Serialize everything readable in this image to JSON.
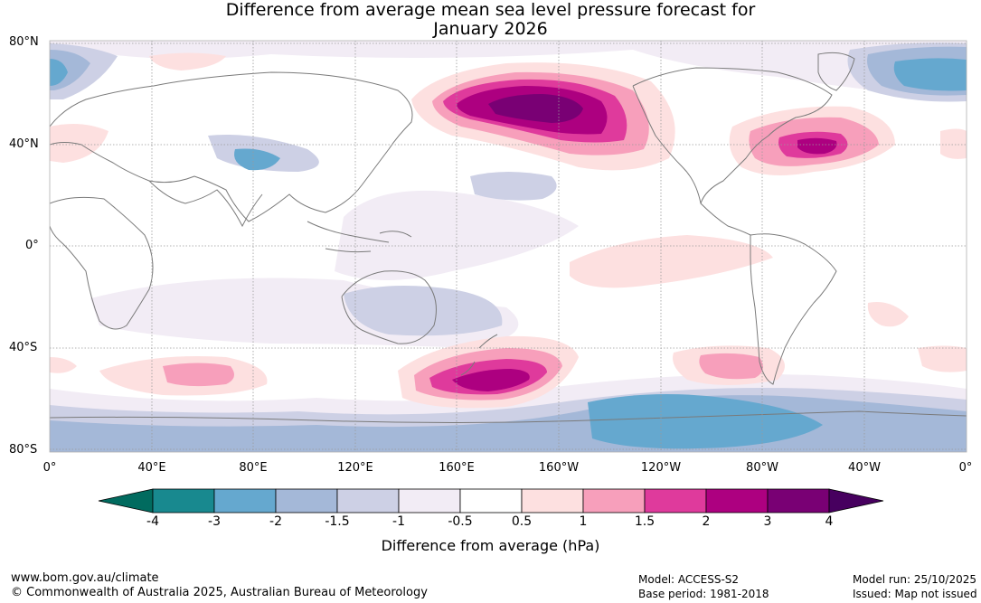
{
  "title": {
    "line1": "Difference from average mean sea level pressure forecast for",
    "line2": "January 2026"
  },
  "map": {
    "lat_labels": [
      "80°N",
      "40°N",
      "0°",
      "40°S",
      "80°S"
    ],
    "lon_labels": [
      "0°",
      "40°E",
      "80°E",
      "120°E",
      "160°E",
      "160°W",
      "120°W",
      "80°W",
      "40°W",
      "0°"
    ],
    "anomaly_regions": [
      {
        "name": "north-pacific-high",
        "peak_hpa": 4
      },
      {
        "name": "north-atlantic-high",
        "peak_hpa": 2
      },
      {
        "name": "south-pacific-high",
        "peak_hpa": 3
      },
      {
        "name": "south-indian-high",
        "peak_hpa": 1.5
      },
      {
        "name": "south-atlantic-high",
        "peak_hpa": 1.5
      },
      {
        "name": "southern-ocean-low",
        "peak_hpa": -3
      },
      {
        "name": "arctic-low",
        "peak_hpa": -3
      },
      {
        "name": "tibet-low",
        "peak_hpa": -2
      }
    ]
  },
  "colorbar": {
    "ticks": [
      "-4",
      "-3",
      "-2",
      "-1.5",
      "-1",
      "-0.5",
      "0.5",
      "1",
      "1.5",
      "2",
      "3",
      "4"
    ],
    "colors": [
      "#18898f",
      "#65a8cf",
      "#a4b8d8",
      "#cdd0e5",
      "#f2ecf5",
      "#ffffff",
      "#fde0e0",
      "#f79fbb",
      "#df3a9c",
      "#ad0080",
      "#790074"
    ],
    "low_extend_color": "#016b5f",
    "high_extend_color": "#47005f",
    "label": "Difference from average (hPa)"
  },
  "footer": {
    "website": "www.bom.gov.au/climate",
    "copyright": "© Commonwealth of Australia 2025, Australian Bureau of Meteorology",
    "model": "Model: ACCESS-S2",
    "base_period": "Base period: 1981-2018",
    "model_run": "Model run: 25/10/2025",
    "issued": "Issued: Map not issued"
  }
}
